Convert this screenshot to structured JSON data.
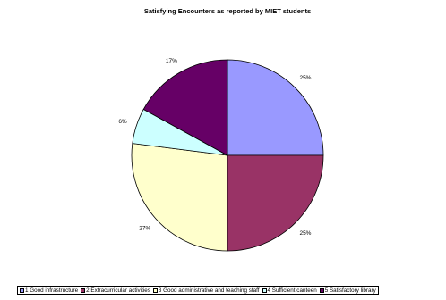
{
  "chart_data": {
    "type": "pie",
    "title": "Satisfying Encounters as reported by MIET students",
    "categories": [
      "1 Good infrastructure",
      "2 Extracurricular activities",
      "3 Good administrative and teaching staff",
      "4 Sufficient canteen",
      "5 Satisfactory library"
    ],
    "values": [
      25,
      25,
      27,
      6,
      17
    ],
    "labels": [
      "25%",
      "25%",
      "27%",
      "6%",
      "17%"
    ],
    "colors": [
      "#9999ff",
      "#993366",
      "#ffffcc",
      "#ccffff",
      "#660066"
    ],
    "legend_position": "bottom"
  }
}
